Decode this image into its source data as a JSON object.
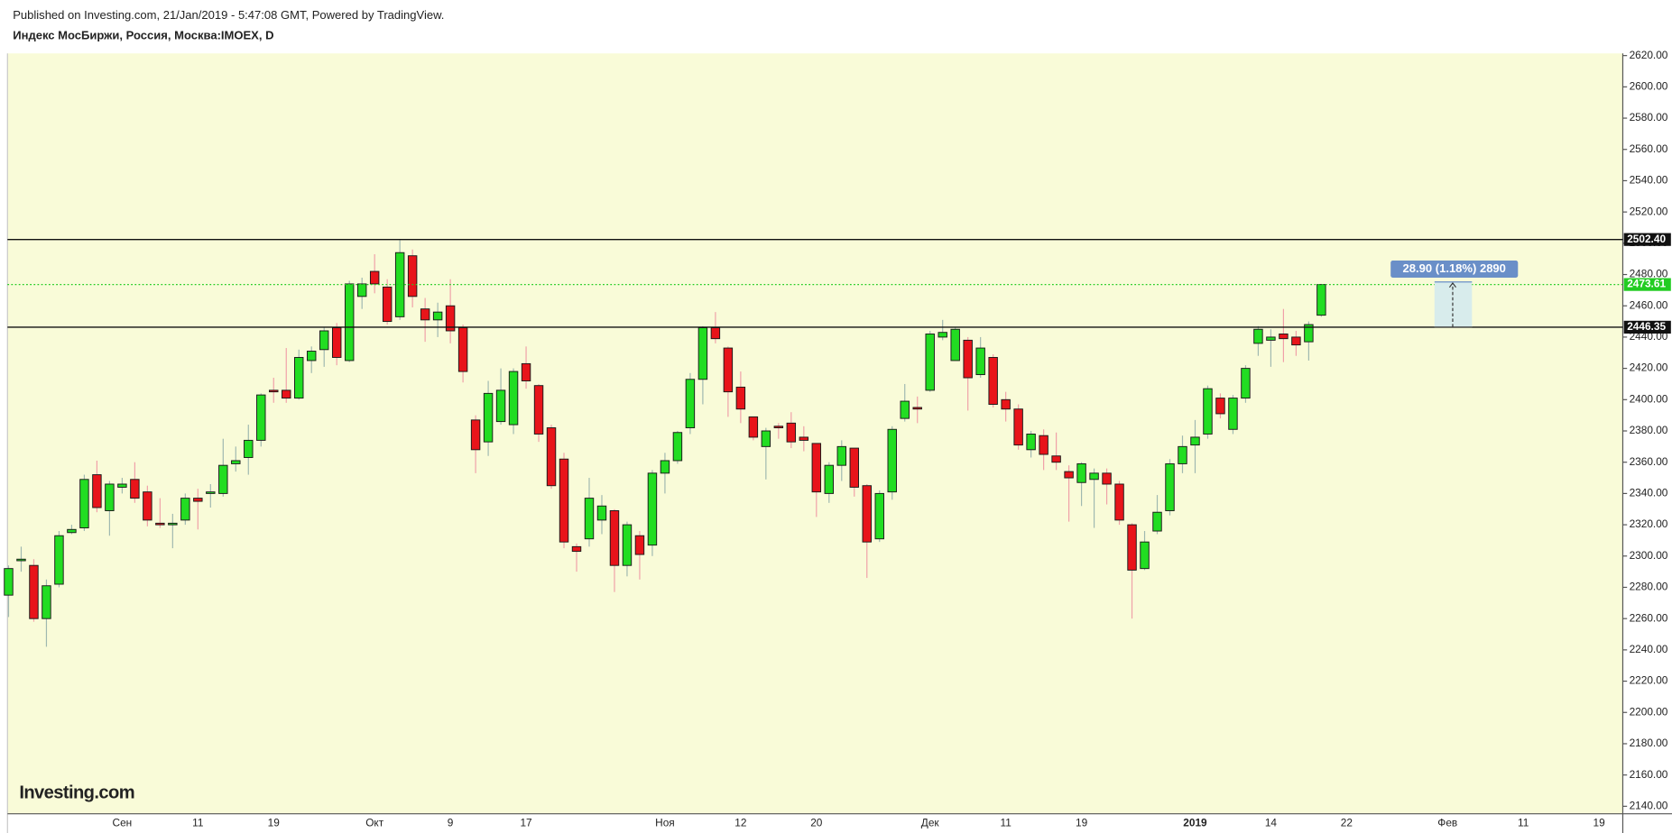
{
  "chart_data": {
    "type": "candlestick",
    "published": "Published on Investing.com, 21/Jan/2019 - 5:47:08 GMT, Powered by TradingView.",
    "title": "Индекс МосБиржи, Россия, Москва:IMOEX, D",
    "logo": "Investing.com",
    "categories": [
      null,
      null,
      null,
      null,
      null,
      null,
      null,
      null,
      null,
      "Сен",
      null,
      null,
      null,
      null,
      null,
      "11",
      null,
      null,
      null,
      null,
      null,
      "19",
      null,
      null,
      null,
      null,
      null,
      null,
      null,
      "Окт",
      null,
      null,
      null,
      null,
      null,
      "9",
      null,
      null,
      null,
      null,
      null,
      "17",
      null,
      null,
      null,
      null,
      null,
      null,
      null,
      null,
      null,
      null,
      "Ноя",
      null,
      null,
      null,
      null,
      null,
      "12",
      null,
      null,
      null,
      null,
      null,
      "20",
      null,
      null,
      null,
      null,
      null,
      null,
      null,
      null,
      "Дек",
      null,
      null,
      null,
      null,
      null,
      "11",
      null,
      null,
      null,
      null,
      null,
      "19",
      null,
      null,
      null,
      null,
      null,
      null,
      null,
      null,
      "2019",
      null,
      null,
      null,
      null,
      null,
      "14",
      null,
      null,
      null,
      null,
      null,
      "22",
      null,
      null,
      null,
      null,
      null,
      null,
      null,
      "Фев",
      null,
      null,
      null,
      null,
      null,
      "11",
      null,
      null,
      null,
      null,
      null,
      "19",
      null
    ],
    "open": [
      2275,
      2297,
      2294,
      2260,
      2282,
      2315,
      2318,
      2352,
      2329,
      2344,
      2349,
      2341,
      2321,
      2320,
      2323,
      2337,
      2340,
      2340,
      2359,
      2363,
      2374,
      2406,
      2406,
      2401,
      2425,
      2432,
      2446,
      2425,
      2466,
      2482,
      2472,
      2453,
      2492,
      2458,
      2451,
      2460,
      2446,
      2387,
      2373,
      2386,
      2384,
      2423,
      2409,
      2382,
      2362,
      2306,
      2311,
      2323,
      2329,
      2294,
      2313,
      2307,
      2353,
      2361,
      2382,
      2413,
      2446,
      2433,
      2408,
      2389,
      2370,
      2383,
      2385,
      2376,
      2372,
      2340,
      2358,
      2369,
      2345,
      2311,
      2341,
      2388,
      2395,
      2406,
      2440,
      2425,
      2438,
      2416,
      2427,
      2400,
      2394,
      2368,
      2377,
      2364,
      2354,
      2347,
      2349,
      2353,
      2346,
      2320,
      2292,
      2316,
      2329,
      2359,
      2371,
      2378,
      2401,
      2381,
      2401,
      2436,
      2438,
      2442,
      2440,
      2437,
      2454,
      null,
      null,
      null,
      null,
      null,
      null,
      null,
      null,
      null,
      null,
      null,
      null,
      null,
      null,
      null,
      null,
      null,
      null,
      null,
      null,
      null,
      null,
      null
    ],
    "high": [
      2294,
      2306,
      2298,
      2285,
      2316,
      2320,
      2352,
      2361,
      2348,
      2350,
      2360,
      2345,
      2337,
      2327,
      2340,
      2343,
      2346,
      2375,
      2370,
      2384,
      2404,
      2414,
      2433,
      2432,
      2434,
      2446,
      2449,
      2476,
      2478,
      2493,
      2477,
      2502,
      2496,
      2465,
      2462,
      2477,
      2448,
      2390,
      2412,
      2420,
      2420,
      2434,
      2410,
      2384,
      2366,
      2308,
      2350,
      2339,
      2330,
      2322,
      2316,
      2355,
      2366,
      2380,
      2417,
      2447,
      2456,
      2434,
      2418,
      2389,
      2382,
      2385,
      2392,
      2383,
      2372,
      2360,
      2374,
      2369,
      2346,
      2342,
      2383,
      2410,
      2402,
      2444,
      2451,
      2446,
      2440,
      2440,
      2429,
      2405,
      2397,
      2380,
      2381,
      2379,
      2358,
      2360,
      2356,
      2356,
      2348,
      2321,
      2316,
      2339,
      2362,
      2377,
      2387,
      2409,
      2404,
      2403,
      2422,
      2447,
      2445,
      2458,
      2444,
      2450,
      2474,
      null,
      null,
      null,
      null,
      null,
      null,
      null,
      null,
      null,
      null,
      null,
      null,
      null,
      null,
      null,
      null,
      null,
      null,
      null,
      null,
      null,
      null,
      null
    ],
    "low": [
      2261,
      2290,
      2258,
      2242,
      2280,
      2314,
      2316,
      2328,
      2313,
      2340,
      2334,
      2319,
      2318,
      2305,
      2320,
      2317,
      2331,
      2338,
      2354,
      2352,
      2370,
      2398,
      2398,
      2400,
      2417,
      2421,
      2422,
      2424,
      2458,
      2468,
      2448,
      2451,
      2459,
      2437,
      2440,
      2436,
      2411,
      2353,
      2364,
      2384,
      2378,
      2407,
      2373,
      2343,
      2305,
      2290,
      2306,
      2314,
      2277,
      2287,
      2285,
      2300,
      2340,
      2359,
      2378,
      2397,
      2436,
      2389,
      2385,
      2374,
      2349,
      2375,
      2369,
      2367,
      2325,
      2334,
      2348,
      2338,
      2286,
      2309,
      2336,
      2386,
      2385,
      2405,
      2438,
      2425,
      2393,
      2414,
      2395,
      2386,
      2368,
      2363,
      2355,
      2355,
      2322,
      2332,
      2318,
      2333,
      2320,
      2260,
      2291,
      2314,
      2326,
      2353,
      2353,
      2375,
      2388,
      2378,
      2398,
      2428,
      2421,
      2424,
      2428,
      2425,
      2453,
      null,
      null,
      null,
      null,
      null,
      null,
      null,
      null,
      null,
      null,
      null,
      null,
      null,
      null,
      null,
      null,
      null,
      null,
      null,
      null,
      null,
      null,
      null
    ],
    "close": [
      2292,
      2298,
      2260,
      2281,
      2313,
      2317,
      2349,
      2331,
      2346,
      2346,
      2337,
      2323,
      2320,
      2321,
      2337,
      2335,
      2341,
      2358,
      2361,
      2374,
      2403,
      2405,
      2401,
      2427,
      2431,
      2444,
      2427,
      2474,
      2474,
      2474,
      2450,
      2494,
      2466,
      2451,
      2456,
      2444,
      2418,
      2368,
      2404,
      2406,
      2418,
      2412,
      2378,
      2345,
      2309,
      2303,
      2337,
      2332,
      2294,
      2320,
      2301,
      2353,
      2361,
      2379,
      2413,
      2446,
      2439,
      2405,
      2394,
      2376,
      2380,
      2382,
      2373,
      2374,
      2341,
      2358,
      2370,
      2344,
      2309,
      2340,
      2381,
      2399,
      2394,
      2442,
      2443,
      2445,
      2414,
      2433,
      2397,
      2394,
      2371,
      2378,
      2365,
      2360,
      2350,
      2359,
      2353,
      2346,
      2323,
      2291,
      2309,
      2328,
      2359,
      2370,
      2376,
      2407,
      2391,
      2401,
      2420,
      2445,
      2440,
      2439,
      2435,
      2448,
      2473.61,
      null,
      null,
      null,
      null,
      null,
      null,
      null,
      null,
      null,
      null,
      null,
      null,
      null,
      null,
      null,
      null,
      null,
      null,
      null,
      null,
      null,
      null,
      null
    ],
    "up_color": "#22dd22",
    "down_color": "#e8141a",
    "up_wick_color": "#9fb8b0",
    "down_wick_color": "#f0a0a8",
    "border_color": "#1a1a1a",
    "ylim": [
      2135.2,
      2621.4
    ],
    "yticks": [
      {
        "value": 2140,
        "label": "2140.00"
      },
      {
        "value": 2160,
        "label": "2160.00"
      },
      {
        "value": 2180,
        "label": "2180.00"
      },
      {
        "value": 2200,
        "label": "2200.00"
      },
      {
        "value": 2220,
        "label": "2220.00"
      },
      {
        "value": 2240,
        "label": "2240.00"
      },
      {
        "value": 2260,
        "label": "2260.00"
      },
      {
        "value": 2280,
        "label": "2280.00"
      },
      {
        "value": 2300,
        "label": "2300.00"
      },
      {
        "value": 2320,
        "label": "2320.00"
      },
      {
        "value": 2340,
        "label": "2340.00"
      },
      {
        "value": 2360,
        "label": "2360.00"
      },
      {
        "value": 2380,
        "label": "2380.00"
      },
      {
        "value": 2400,
        "label": "2400.00"
      },
      {
        "value": 2420,
        "label": "2420.00"
      },
      {
        "value": 2440,
        "label": "2440.00"
      },
      {
        "value": 2460,
        "label": "2460.00"
      },
      {
        "value": 2480,
        "label": "2480.00"
      },
      {
        "value": 2500,
        "label": "2500.00"
      },
      {
        "value": 2520,
        "label": "2520.00"
      },
      {
        "value": 2540,
        "label": "2540.00"
      },
      {
        "value": 2560,
        "label": "2560.00"
      },
      {
        "value": 2580,
        "label": "2580.00"
      },
      {
        "value": 2600,
        "label": "2600.00"
      },
      {
        "value": 2620,
        "label": "2620.00"
      }
    ],
    "hlines": [
      {
        "value": 2502.4,
        "label": "2502.40"
      },
      {
        "value": 2446.35,
        "label": "2446.35"
      }
    ],
    "last_price": {
      "value": 2473.61,
      "label": "2473.61",
      "color": "#22cc22"
    },
    "measure": {
      "label": "28.90 (1.18%) 2890",
      "from": 2446.35,
      "to": 2475.25
    }
  }
}
